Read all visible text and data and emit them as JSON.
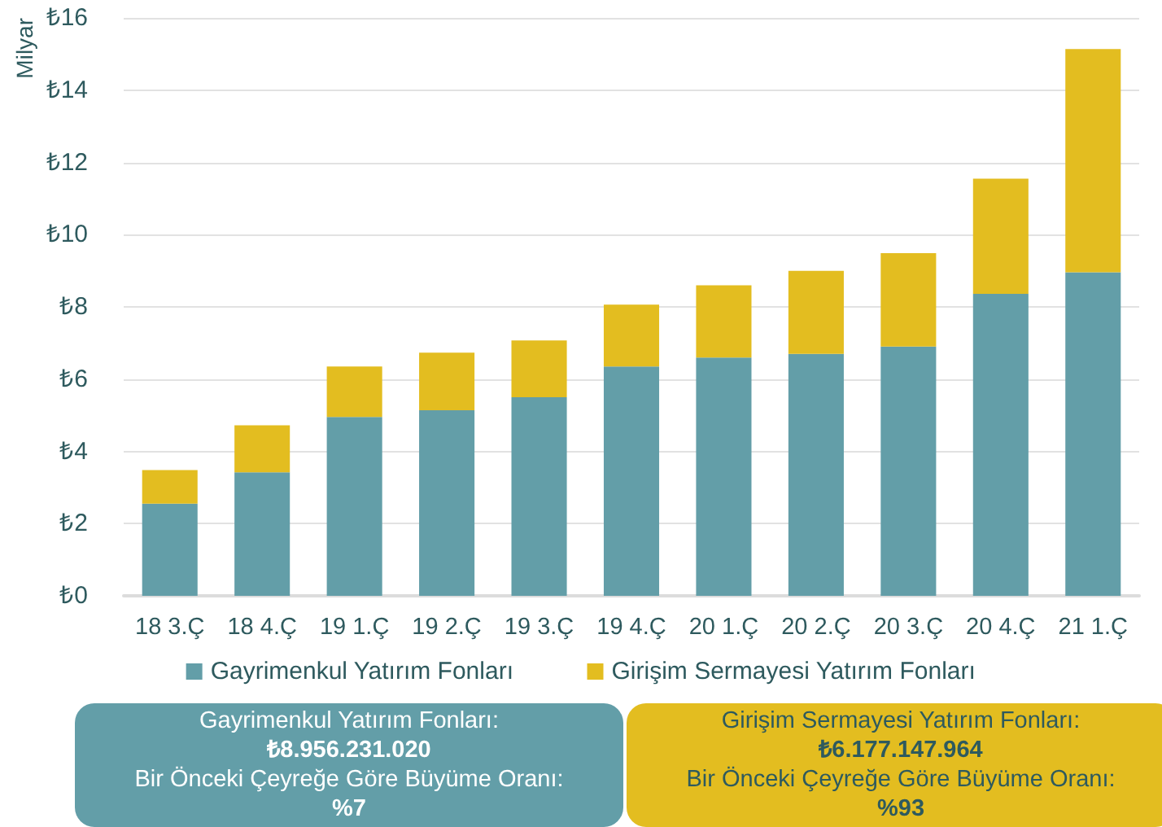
{
  "chart_data": {
    "type": "bar",
    "stacked": true,
    "ylabel": "Milyar",
    "categories": [
      "18 3.Ç",
      "18 4.Ç",
      "19 1.Ç",
      "19 2.Ç",
      "19 3.Ç",
      "19 4.Ç",
      "20 1.Ç",
      "20 2.Ç",
      "20 3.Ç",
      "20 4.Ç",
      "21 1.Ç"
    ],
    "series": [
      {
        "name": "Gayrimenkul Yatırım Fonları",
        "color": "#639ea8",
        "values": [
          2.55,
          3.42,
          4.95,
          5.14,
          5.5,
          6.35,
          6.6,
          6.7,
          6.9,
          8.36,
          8.96
        ]
      },
      {
        "name": "Girişim Sermayesi Yatırım Fonları",
        "color": "#e3bd20",
        "values": [
          0.93,
          1.3,
          1.4,
          1.59,
          1.57,
          1.71,
          2.0,
          2.3,
          2.59,
          3.19,
          6.18
        ]
      }
    ],
    "ylim": [
      0,
      16
    ],
    "yticks": [
      {
        "value": 0,
        "label": "₺0"
      },
      {
        "value": 2,
        "label": "₺2"
      },
      {
        "value": 4,
        "label": "₺4"
      },
      {
        "value": 6,
        "label": "₺6"
      },
      {
        "value": 8,
        "label": "₺8"
      },
      {
        "value": 10,
        "label": "₺10"
      },
      {
        "value": 12,
        "label": "₺12"
      },
      {
        "value": 14,
        "label": "₺14"
      },
      {
        "value": 16,
        "label": "₺16"
      }
    ],
    "grid": "y",
    "legend": "bottom",
    "annotations": [
      "Gayrimenkul Yatırım Fonları:\n₺8.956.231.020\nBir Önceki Çeyreğe Göre Büyüme Oranı:\n%7",
      "Girişim Sermayesi Yatırım Fonları:\n₺6.177.147.964\nBir Önceki Çeyreğe Göre Büyüme Oranı:\n%93"
    ]
  }
}
